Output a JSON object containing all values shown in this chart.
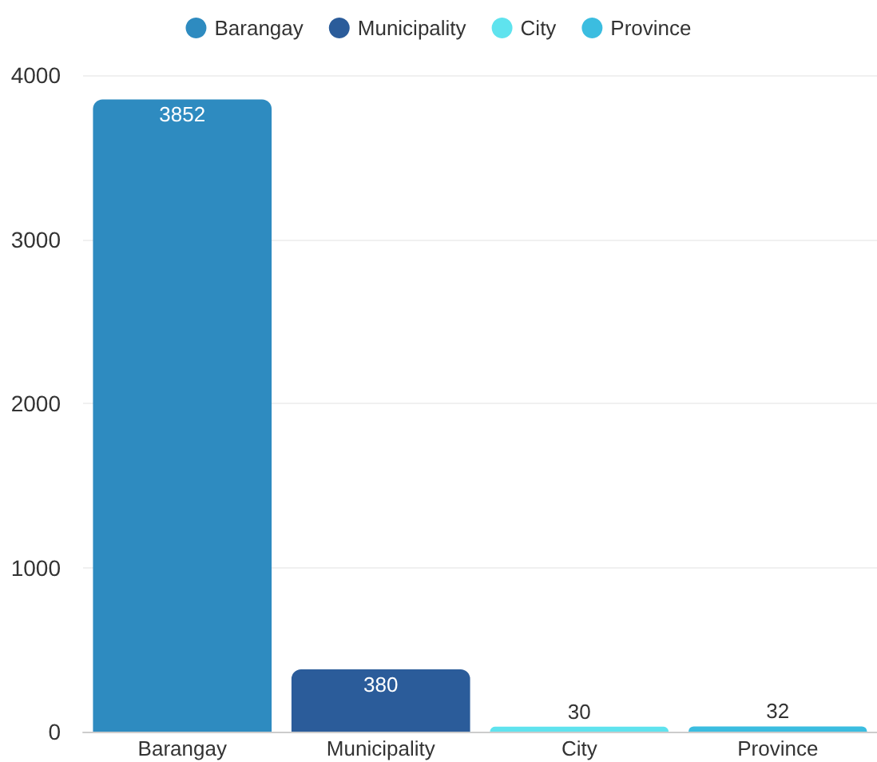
{
  "chart_data": {
    "type": "bar",
    "categories": [
      "Barangay",
      "Municipality",
      "City",
      "Province"
    ],
    "series": [
      {
        "name": "Barangay",
        "color": "#2e8bc0",
        "values": [
          3852,
          null,
          null,
          null
        ]
      },
      {
        "name": "Municipality",
        "color": "#2b5c9a",
        "values": [
          null,
          380,
          null,
          null
        ]
      },
      {
        "name": "City",
        "color": "#5fe3ee",
        "values": [
          null,
          null,
          30,
          null
        ]
      },
      {
        "name": "Province",
        "color": "#3bbde0",
        "values": [
          null,
          null,
          null,
          32
        ]
      }
    ],
    "stacked": true,
    "ylim": [
      0,
      4000
    ],
    "yticks": [
      0,
      1000,
      2000,
      3000,
      4000
    ],
    "grid": "y",
    "legend": "top",
    "data_labels": true
  }
}
